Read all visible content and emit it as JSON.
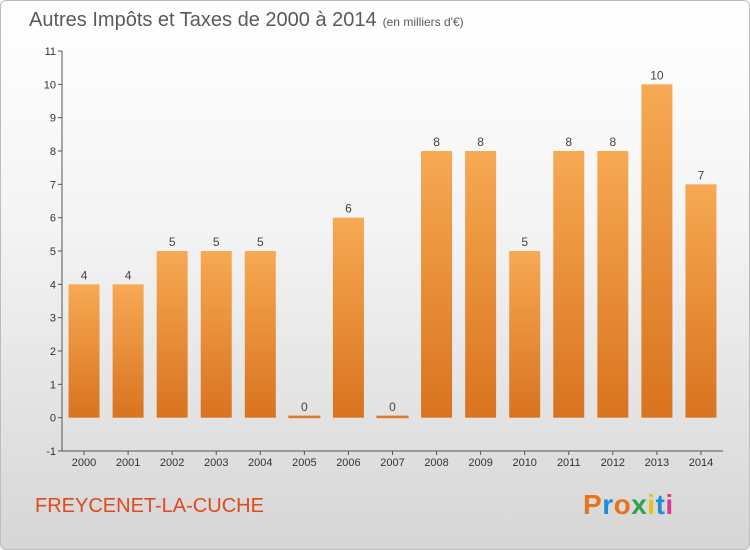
{
  "header": {
    "title": "Autres Impôts et Taxes de 2000 à 2014",
    "unit_note": "(en milliers d'€)"
  },
  "footer": {
    "commune": "FREYCENET-LA-CUCHE",
    "logo_text": "Proxiti",
    "logo_colors": [
      "#e8731c",
      "#1e8fd6",
      "#e8731c",
      "#2ba34a",
      "#e5c21a",
      "#1e8fd6",
      "#d93a8b"
    ]
  },
  "chart_data": {
    "type": "bar",
    "title": "Autres Impôts et Taxes de 2000 à 2014",
    "subtitle": "(en milliers d'€)",
    "xlabel": "",
    "ylabel": "",
    "categories": [
      "2000",
      "2001",
      "2002",
      "2003",
      "2004",
      "2005",
      "2006",
      "2007",
      "2008",
      "2009",
      "2010",
      "2011",
      "2012",
      "2013",
      "2014"
    ],
    "values": [
      4,
      4,
      5,
      5,
      5,
      0,
      6,
      0,
      8,
      8,
      5,
      8,
      8,
      10,
      7
    ],
    "y_ticks": [
      "-1",
      "0",
      "1",
      "2",
      "3",
      "4",
      "5",
      "6",
      "7",
      "8",
      "9",
      "10",
      "11"
    ],
    "ylim": [
      -1,
      11
    ],
    "grid": false,
    "bar_color_top": "#f7a953",
    "bar_color_bottom": "#d9731f"
  }
}
